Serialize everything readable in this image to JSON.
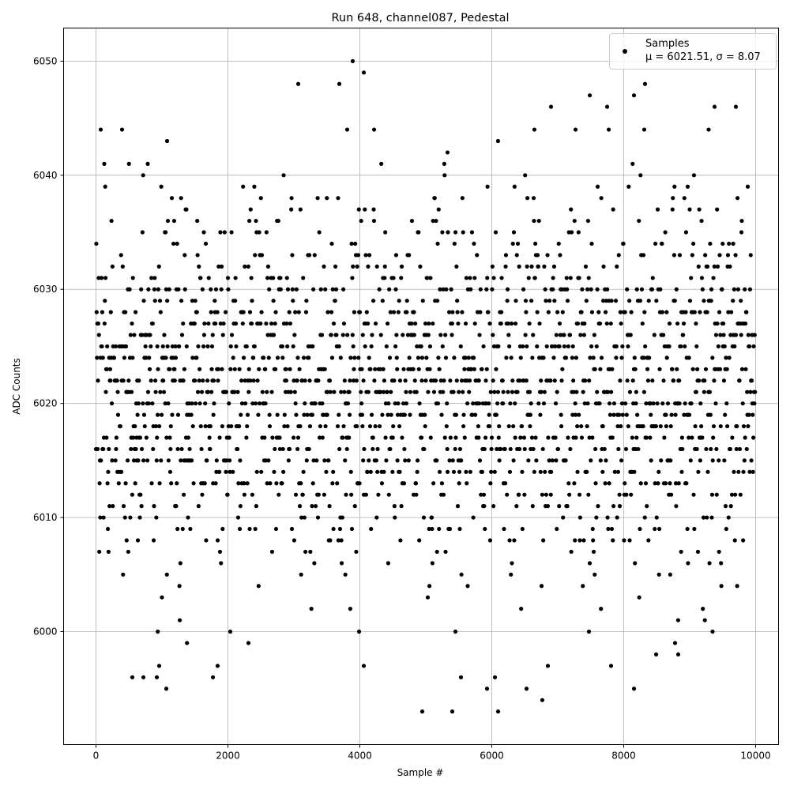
{
  "chart_data": {
    "type": "scatter",
    "title": "Run 648, channel087, Pedestal",
    "xlabel": "Sample #",
    "ylabel": "ADC Counts",
    "xlim": [
      -491,
      10347
    ],
    "ylim": [
      5990.1,
      6052.9
    ],
    "xticks": [
      0,
      2000,
      4000,
      6000,
      8000,
      10000
    ],
    "xtick_labels": [
      "0",
      "2000",
      "4000",
      "6000",
      "8000",
      "10000"
    ],
    "yticks": [
      6000,
      6010,
      6020,
      6030,
      6040,
      6050
    ],
    "ytick_labels": [
      "6000",
      "6010",
      "6020",
      "6030",
      "6040",
      "6050"
    ],
    "grid": true,
    "legend": {
      "placement": "upper-right",
      "entries": [
        {
          "label": "Samples",
          "stats": "μ = 6021.51, σ = 8.07"
        }
      ]
    },
    "series": [
      {
        "name": "Samples",
        "color": "#000000",
        "marker": "circle",
        "mean": 6021.51,
        "std": 8.07,
        "x_range": [
          0,
          9990
        ],
        "outliers": [
          {
            "x": 3892,
            "y": 6050
          },
          {
            "x": 4060,
            "y": 6049
          },
          {
            "x": 3066,
            "y": 6048
          },
          {
            "x": 3689,
            "y": 6048
          },
          {
            "x": 8323,
            "y": 6048
          },
          {
            "x": 8156,
            "y": 6047
          },
          {
            "x": 7486,
            "y": 6047
          },
          {
            "x": 6898,
            "y": 6046
          },
          {
            "x": 7749,
            "y": 6046
          },
          {
            "x": 9700,
            "y": 6046
          },
          {
            "x": 9377,
            "y": 6046
          },
          {
            "x": 72,
            "y": 6044
          },
          {
            "x": 395,
            "y": 6044
          },
          {
            "x": 3808,
            "y": 6044
          },
          {
            "x": 4216,
            "y": 6044
          },
          {
            "x": 6646,
            "y": 6044
          },
          {
            "x": 7270,
            "y": 6044
          },
          {
            "x": 7773,
            "y": 6044
          },
          {
            "x": 8311,
            "y": 6044
          },
          {
            "x": 9287,
            "y": 6044
          },
          {
            "x": 1078,
            "y": 6043
          },
          {
            "x": 5329,
            "y": 6042
          },
          {
            "x": 6095,
            "y": 6043
          },
          {
            "x": 4946,
            "y": 5993
          },
          {
            "x": 5401,
            "y": 5993
          },
          {
            "x": 6096,
            "y": 5993
          },
          {
            "x": 6766,
            "y": 5994
          },
          {
            "x": 1066,
            "y": 5995
          },
          {
            "x": 5928,
            "y": 5995
          },
          {
            "x": 6527,
            "y": 5995
          },
          {
            "x": 8156,
            "y": 5995
          },
          {
            "x": 551,
            "y": 5996
          },
          {
            "x": 719,
            "y": 5996
          },
          {
            "x": 922,
            "y": 5996
          },
          {
            "x": 1773,
            "y": 5996
          },
          {
            "x": 5533,
            "y": 5996
          },
          {
            "x": 6048,
            "y": 5996
          },
          {
            "x": 958,
            "y": 5997
          },
          {
            "x": 1844,
            "y": 5997
          },
          {
            "x": 4060,
            "y": 5997
          },
          {
            "x": 6850,
            "y": 5997
          },
          {
            "x": 7808,
            "y": 5997
          },
          {
            "x": 8491,
            "y": 5998
          },
          {
            "x": 8826,
            "y": 5998
          },
          {
            "x": 8778,
            "y": 5999
          },
          {
            "x": 1380,
            "y": 5999
          },
          {
            "x": 2311,
            "y": 5999
          },
          {
            "x": 937,
            "y": 6000
          },
          {
            "x": 2036,
            "y": 6000
          },
          {
            "x": 3988,
            "y": 6000
          },
          {
            "x": 7473,
            "y": 6000
          },
          {
            "x": 9347,
            "y": 6000
          },
          {
            "x": 5449,
            "y": 6000
          }
        ]
      }
    ]
  }
}
